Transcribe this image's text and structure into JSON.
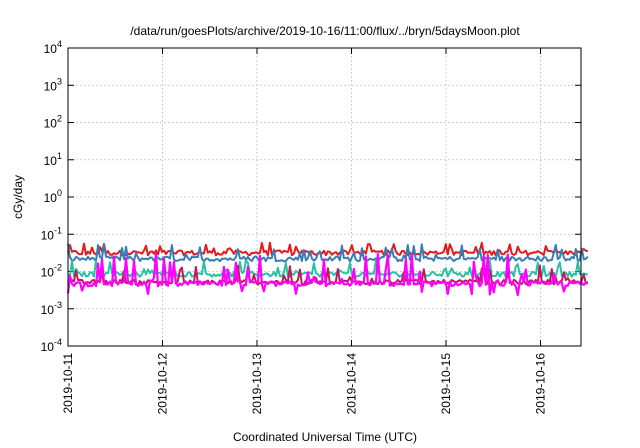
{
  "chart_data": {
    "type": "line",
    "title": "/data/run/goesPlots/archive/2019-10-16/11:00/flux/../bryn/5daysMoon.plot",
    "xlabel": "Coordinated Universal Time (UTC)",
    "ylabel": "cGy/day",
    "y_scale": "log",
    "ylim_exponents": [
      -4,
      4
    ],
    "y_tick_exponents": [
      -4,
      -3,
      -2,
      -1,
      0,
      1,
      2,
      3,
      4
    ],
    "xlim_days": [
      "2019-10-11",
      "2019-10-16 12:00"
    ],
    "x_tick_labels": [
      "2019-10-11",
      "2019-10-12",
      "2019-10-13",
      "2019-10-14",
      "2019-10-15",
      "2019-10-16"
    ],
    "grid": true,
    "series": [
      {
        "color": "#e41a1c",
        "base": 0.032,
        "spike": 0.06
      },
      {
        "color": "#377eb8",
        "base": 0.022,
        "spike": 0.055
      },
      {
        "color": "#2bbfa4",
        "base": 0.0085,
        "spike": 0.02
      },
      {
        "color": "#c2185b",
        "base": 0.0052,
        "spike": 0.015
      },
      {
        "color": "#ff00ff",
        "base": 0.0047,
        "spike": 0.03
      }
    ]
  }
}
